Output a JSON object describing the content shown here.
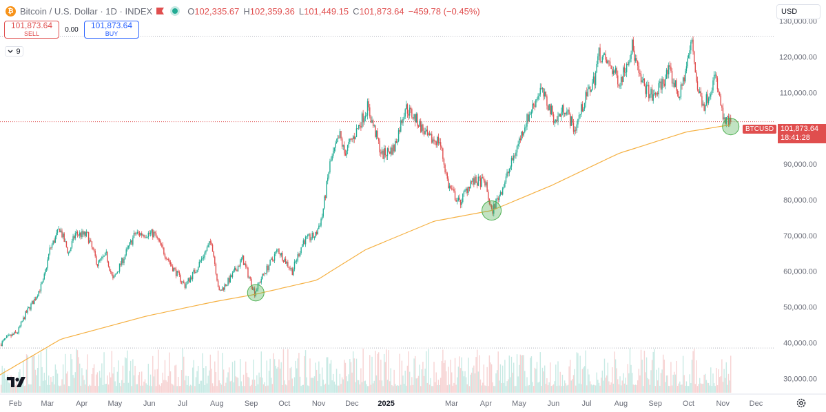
{
  "header": {
    "title": "Bitcoin / U.S. Dollar",
    "interval": "1D",
    "source": "INDEX",
    "btc_glyph": "₿",
    "open_key": "O",
    "open": "102,335.67",
    "high_key": "H",
    "high": "102,359.36",
    "low_key": "L",
    "low": "101,449.15",
    "close_key": "C",
    "close": "101,873.64",
    "change": "−459.78 (−0.45%)"
  },
  "trade": {
    "sell_price": "101,873.64",
    "sell_label": "SELL",
    "spread": "0.00",
    "buy_price": "101,873.64",
    "buy_label": "BUY"
  },
  "indicator_toggle": {
    "count": "9"
  },
  "currency": "USD",
  "price_label": {
    "symbol": "BTCUSD",
    "price": "101,873.64",
    "countdown": "18:41:28"
  },
  "colors": {
    "up": "#22ab94",
    "down": "#e04e4e",
    "ma": "#f5b041",
    "highlight": "#4caf50"
  },
  "chart_data": {
    "type": "candlestick",
    "y_axis": {
      "range": [
        26000,
        134000
      ],
      "ticks": [
        130000,
        120000,
        110000,
        100000,
        90000,
        80000,
        70000,
        60000,
        50000,
        40000,
        30000
      ],
      "tick_labels": [
        "130,000.00",
        "120,000.00",
        "110,000.00",
        "100,000.00",
        "90,000.00",
        "80,000.00",
        "70,000.00",
        "60,000.00",
        "50,000.00",
        "40,000.00",
        "30,000.00"
      ]
    },
    "x_axis": {
      "labels": [
        {
          "text": "Feb",
          "date": "2024-02-01"
        },
        {
          "text": "Mar",
          "date": "2024-03-01"
        },
        {
          "text": "Apr",
          "date": "2024-04-01"
        },
        {
          "text": "May",
          "date": "2024-05-01"
        },
        {
          "text": "Jun",
          "date": "2024-06-01"
        },
        {
          "text": "Jul",
          "date": "2024-07-01"
        },
        {
          "text": "Aug",
          "date": "2024-08-01"
        },
        {
          "text": "Sep",
          "date": "2024-09-01"
        },
        {
          "text": "Oct",
          "date": "2024-10-01"
        },
        {
          "text": "Nov",
          "date": "2024-11-01"
        },
        {
          "text": "Dec",
          "date": "2024-12-01"
        },
        {
          "text": "2025",
          "date": "2025-01-01",
          "bold": true
        },
        {
          "text": "Mar",
          "date": "2025-03-01"
        },
        {
          "text": "Apr",
          "date": "2025-04-01"
        },
        {
          "text": "May",
          "date": "2025-05-01"
        },
        {
          "text": "Jun",
          "date": "2025-06-01"
        },
        {
          "text": "Jul",
          "date": "2025-07-01"
        },
        {
          "text": "Aug",
          "date": "2025-08-01"
        },
        {
          "text": "Sep",
          "date": "2025-09-01"
        },
        {
          "text": "Oct",
          "date": "2025-10-01"
        },
        {
          "text": "Nov",
          "date": "2025-11-01"
        },
        {
          "text": "Dec",
          "date": "2025-12-01"
        }
      ],
      "range": [
        "2024-01-20",
        "2025-12-20"
      ]
    },
    "price_keypoints": [
      [
        "2024-01-20",
        39500
      ],
      [
        "2024-01-25",
        41000
      ],
      [
        "2024-02-05",
        43000
      ],
      [
        "2024-02-12",
        48000
      ],
      [
        "2024-02-20",
        52000
      ],
      [
        "2024-02-28",
        57000
      ],
      [
        "2024-03-05",
        66000
      ],
      [
        "2024-03-14",
        72000
      ],
      [
        "2024-03-22",
        65000
      ],
      [
        "2024-03-28",
        70500
      ],
      [
        "2024-04-08",
        70000
      ],
      [
        "2024-04-17",
        62000
      ],
      [
        "2024-04-25",
        64500
      ],
      [
        "2024-05-01",
        57500
      ],
      [
        "2024-05-08",
        62000
      ],
      [
        "2024-05-21",
        70500
      ],
      [
        "2024-06-07",
        70500
      ],
      [
        "2024-06-24",
        61000
      ],
      [
        "2024-07-05",
        56000
      ],
      [
        "2024-07-14",
        60000
      ],
      [
        "2024-07-29",
        68500
      ],
      [
        "2024-08-05",
        54000
      ],
      [
        "2024-08-15",
        58000
      ],
      [
        "2024-08-26",
        63500
      ],
      [
        "2024-09-06",
        54000
      ],
      [
        "2024-09-12",
        58000
      ],
      [
        "2024-09-27",
        66000
      ],
      [
        "2024-10-10",
        60000
      ],
      [
        "2024-10-20",
        68500
      ],
      [
        "2024-10-31",
        70000
      ],
      [
        "2024-11-06",
        75500
      ],
      [
        "2024-11-13",
        90000
      ],
      [
        "2024-11-22",
        98000
      ],
      [
        "2024-11-26",
        93000
      ],
      [
        "2024-12-05",
        98000
      ],
      [
        "2024-12-17",
        106000
      ],
      [
        "2024-12-30",
        92500
      ],
      [
        "2025-01-10",
        94500
      ],
      [
        "2025-01-20",
        106000
      ],
      [
        "2025-01-31",
        102000
      ],
      [
        "2025-02-10",
        97000
      ],
      [
        "2025-02-20",
        96500
      ],
      [
        "2025-02-28",
        84000
      ],
      [
        "2025-03-10",
        79000
      ],
      [
        "2025-03-20",
        85000
      ],
      [
        "2025-04-02",
        85000
      ],
      [
        "2025-04-08",
        76500
      ],
      [
        "2025-04-20",
        85000
      ],
      [
        "2025-05-08",
        101000
      ],
      [
        "2025-05-22",
        111000
      ],
      [
        "2025-06-05",
        102000
      ],
      [
        "2025-06-13",
        106000
      ],
      [
        "2025-06-22",
        99500
      ],
      [
        "2025-06-30",
        107000
      ],
      [
        "2025-07-10",
        114000
      ],
      [
        "2025-07-14",
        121000
      ],
      [
        "2025-07-25",
        117000
      ],
      [
        "2025-08-02",
        113000
      ],
      [
        "2025-08-13",
        123000
      ],
      [
        "2025-08-20",
        113500
      ],
      [
        "2025-09-01",
        108500
      ],
      [
        "2025-09-15",
        116000
      ],
      [
        "2025-09-25",
        109000
      ],
      [
        "2025-10-06",
        124500
      ],
      [
        "2025-10-11",
        111000
      ],
      [
        "2025-10-17",
        106500
      ],
      [
        "2025-10-27",
        114500
      ],
      [
        "2025-11-04",
        101500
      ],
      [
        "2025-11-10",
        101873.64
      ]
    ],
    "moving_average_keypoints": [
      [
        "2024-01-20",
        31000
      ],
      [
        "2024-03-15",
        41000
      ],
      [
        "2024-06-01",
        47500
      ],
      [
        "2024-08-01",
        51500
      ],
      [
        "2024-09-06",
        53500
      ],
      [
        "2024-11-01",
        57500
      ],
      [
        "2024-12-15",
        66000
      ],
      [
        "2025-02-15",
        74000
      ],
      [
        "2025-04-08",
        77000
      ],
      [
        "2025-06-01",
        84000
      ],
      [
        "2025-08-01",
        93000
      ],
      [
        "2025-10-01",
        99000
      ],
      [
        "2025-11-10",
        101000
      ]
    ],
    "highlight_circles": [
      {
        "date": "2024-09-07",
        "price": 54000
      },
      {
        "date": "2025-04-08",
        "price": 77000
      },
      {
        "date": "2025-11-10",
        "price": 100500
      }
    ],
    "reference_lines": [
      {
        "price": 125800,
        "style": "dotted"
      },
      {
        "price": 101873.64,
        "style": "dotted",
        "color": "#e04e4e"
      },
      {
        "price": 38500,
        "style": "dotted"
      }
    ],
    "volume": {
      "bottom_price": 26000,
      "max_height_price": 38500
    }
  }
}
